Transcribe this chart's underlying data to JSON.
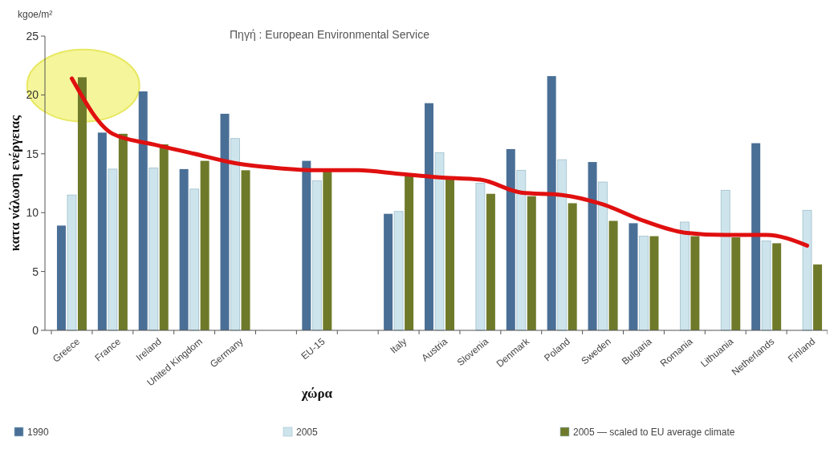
{
  "chart_data": {
    "type": "bar",
    "ylabel": "κατα νάλωση ενέργειας",
    "xlabel": "χώρα",
    "annotations": [
      "kgoe/m²",
      "Πηγή : European Environmental Service"
    ],
    "categories": [
      "Greece",
      "France",
      "Ireland",
      "United Kingdom",
      "Germany",
      null,
      "EU-15",
      null,
      "Italy",
      "Austria",
      "Slovenia",
      "Denmark",
      "Poland",
      "Sweden",
      "Bulgaria",
      "Romania",
      "Lithuania",
      "Netherlands",
      "Finland"
    ],
    "series": [
      {
        "name": "1990",
        "color": "#4a6f96",
        "values": [
          8.9,
          16.8,
          20.3,
          13.7,
          18.4,
          null,
          14.4,
          null,
          9.9,
          19.3,
          null,
          15.4,
          21.6,
          14.3,
          9.1,
          null,
          null,
          15.9,
          null
        ]
      },
      {
        "name": "2005",
        "color": "#cde4ec",
        "values": [
          11.5,
          13.7,
          13.8,
          12.0,
          16.3,
          null,
          12.7,
          null,
          10.1,
          15.1,
          12.5,
          13.6,
          14.5,
          12.6,
          8.0,
          9.2,
          11.9,
          7.6,
          10.2
        ]
      },
      {
        "name": "2005 — scaled to EU average climate",
        "color": "#6e7a2a",
        "values": [
          21.5,
          16.7,
          15.8,
          14.4,
          13.6,
          null,
          13.5,
          null,
          13.1,
          13.0,
          11.6,
          11.4,
          10.8,
          9.3,
          8.0,
          8.0,
          7.9,
          7.4,
          5.6
        ]
      },
      {
        "type": "line",
        "color": "#e01010",
        "values": [
          21.4,
          16.7,
          15.8,
          15.0,
          14.2,
          13.8,
          13.6,
          13.6,
          13.3,
          13.0,
          12.8,
          11.7,
          11.5,
          10.7,
          9.3,
          8.3,
          8.1,
          8.1,
          7.2
        ]
      }
    ],
    "ylim": [
      0,
      25
    ],
    "yticks": [
      0,
      5,
      10,
      15,
      20,
      25
    ],
    "grid": false,
    "legend": "bottom"
  }
}
